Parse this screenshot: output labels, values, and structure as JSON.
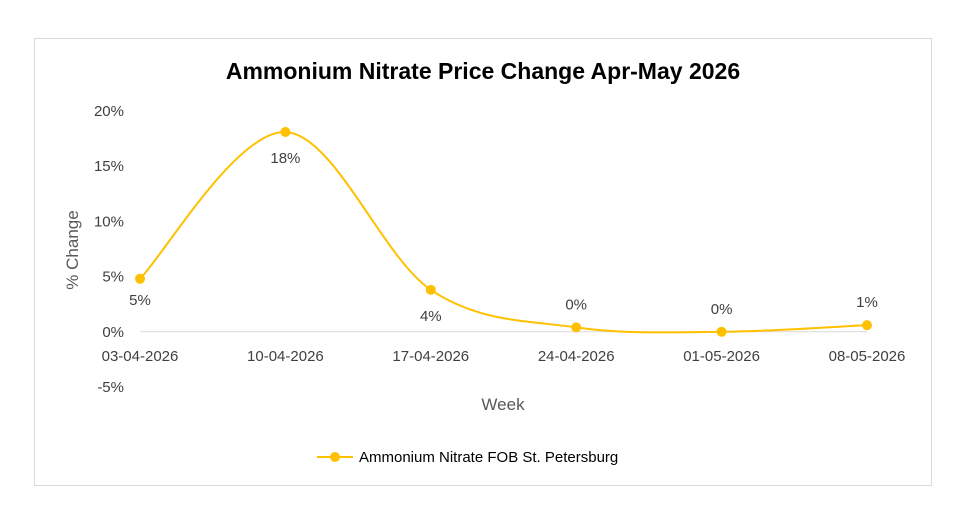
{
  "chart_data": {
    "type": "line",
    "title": "Ammonium Nitrate Price Change Apr-May 2026",
    "xlabel": "Week",
    "ylabel": "% Change",
    "categories": [
      "03-04-2026",
      "10-04-2026",
      "17-04-2026",
      "24-04-2026",
      "01-05-2026",
      "08-05-2026"
    ],
    "series": [
      {
        "name": "Ammonium Nitrate FOB St. Petersburg",
        "values": [
          4.8,
          18.1,
          3.8,
          0.4,
          0.0,
          0.6
        ],
        "data_labels": [
          "5%",
          "18%",
          "4%",
          "0%",
          "0%",
          "1%"
        ]
      }
    ],
    "y_ticks": [
      "20%",
      "15%",
      "10%",
      "5%",
      "0%",
      "-5%"
    ],
    "ylim": [
      -5,
      20
    ],
    "smooth": true,
    "grid": false,
    "legend_position": "bottom",
    "colors": {
      "series": "#FFC000",
      "axis": "#d9d9d9",
      "text": "#404040"
    }
  }
}
